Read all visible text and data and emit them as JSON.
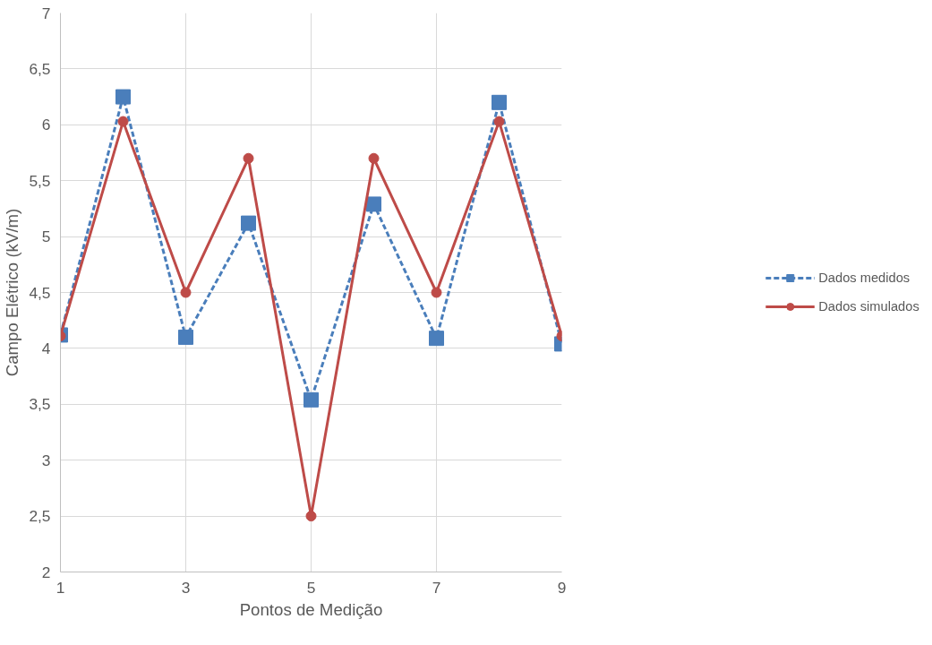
{
  "chart_data": {
    "type": "line",
    "xlabel": "Pontos de Medição",
    "ylabel": "Campo Elétrico (kV/m)",
    "x": [
      1,
      2,
      3,
      4,
      5,
      6,
      7,
      8,
      9
    ],
    "series": [
      {
        "name": "Dados medidos",
        "color": "#4a7ebb",
        "marker": "square",
        "line_style": "dashed",
        "values": [
          4.12,
          6.25,
          4.1,
          5.12,
          3.54,
          5.29,
          4.09,
          6.2,
          4.04
        ]
      },
      {
        "name": "Dados simulados",
        "color": "#be4b48",
        "marker": "circle",
        "line_style": "solid",
        "values": [
          4.11,
          6.03,
          4.5,
          5.7,
          2.5,
          5.7,
          4.5,
          6.03,
          4.11
        ]
      }
    ],
    "xlim": [
      1,
      9
    ],
    "xticks": [
      1,
      3,
      5,
      7,
      9
    ],
    "ylim": [
      2,
      7
    ],
    "yticks": [
      2,
      {
        "value": 2.5,
        "label": "2,5"
      },
      3,
      {
        "value": 3.5,
        "label": "3,5"
      },
      4,
      {
        "value": 4.5,
        "label": "4,5"
      },
      5,
      {
        "value": 5.5,
        "label": "5,5"
      },
      6,
      {
        "value": 6.5,
        "label": "6,5"
      },
      7
    ],
    "grid": true,
    "legend": "right"
  }
}
